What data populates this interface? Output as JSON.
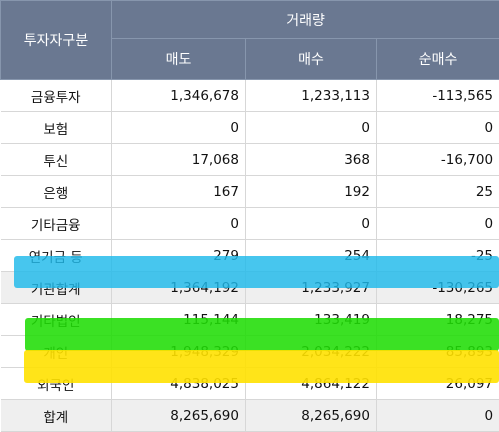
{
  "table": {
    "header": {
      "investor_type": "투자자구분",
      "volume_group": "거래량",
      "sell": "매도",
      "buy": "매수",
      "net_buy": "순매수"
    },
    "rows": [
      {
        "label": "금융투자",
        "sell": "1,346,678",
        "buy": "1,233,113",
        "net": "-113,565"
      },
      {
        "label": "보험",
        "sell": "0",
        "buy": "0",
        "net": "0"
      },
      {
        "label": "투신",
        "sell": "17,068",
        "buy": "368",
        "net": "-16,700"
      },
      {
        "label": "은행",
        "sell": "167",
        "buy": "192",
        "net": "25"
      },
      {
        "label": "기타금융",
        "sell": "0",
        "buy": "0",
        "net": "0"
      },
      {
        "label": "연기금 등",
        "sell": "279",
        "buy": "254",
        "net": "-25"
      },
      {
        "label": "기관합계",
        "sell": "1,364,192",
        "buy": "1,233,927",
        "net": "-130,265"
      },
      {
        "label": "기타법인",
        "sell": "115,144",
        "buy": "133,419",
        "net": "18,275"
      },
      {
        "label": "개인",
        "sell": "1,948,329",
        "buy": "2,034,222",
        "net": "85,893"
      },
      {
        "label": "외국인",
        "sell": "4,838,025",
        "buy": "4,864,122",
        "net": "26,097"
      },
      {
        "label": "합계",
        "sell": "8,265,690",
        "buy": "8,265,690",
        "net": "0"
      }
    ]
  },
  "highlights": {
    "blue": "#1fb9ea",
    "green": "#20dd06",
    "yellow": "#ffe100"
  }
}
